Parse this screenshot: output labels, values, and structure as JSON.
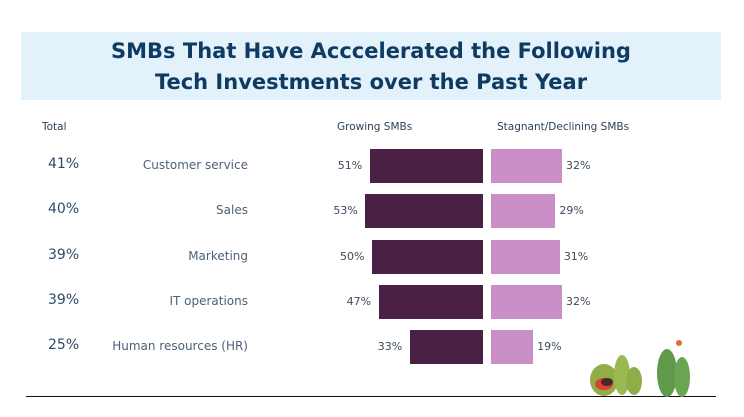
{
  "chart_data": {
    "type": "bar",
    "title": "SMBs That Have Acccelerated the Following Tech Investments over the Past Year",
    "title_lines": [
      "SMBs That Have Acccelerated the Following",
      "Tech Investments over the Past Year"
    ],
    "headers": {
      "total": "Total",
      "growing": "Growing SMBs",
      "stagnant": "Stagnant/Declining SMBs"
    },
    "categories": [
      "Customer service",
      "Sales",
      "Marketing",
      "IT operations",
      "Human resources (HR)"
    ],
    "total": [
      "41%",
      "40%",
      "39%",
      "39%",
      "25%"
    ],
    "series": [
      {
        "name": "Growing SMBs",
        "values": [
          51,
          53,
          50,
          47,
          33
        ],
        "color": "#4a2145"
      },
      {
        "name": "Stagnant/Declining SMBs",
        "values": [
          32,
          29,
          31,
          32,
          19
        ],
        "color": "#c98fc6"
      }
    ]
  }
}
